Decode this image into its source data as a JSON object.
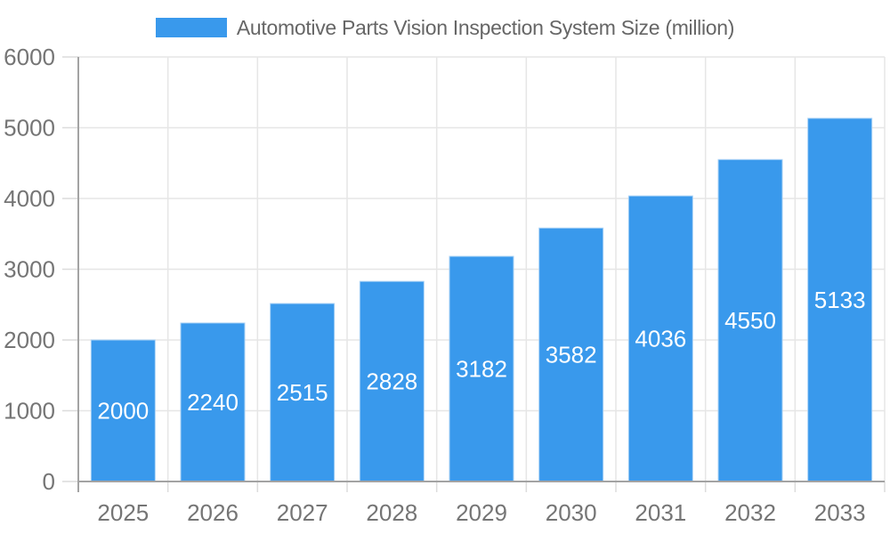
{
  "chart_data": {
    "type": "bar",
    "title": "Automotive Parts Vision Inspection System Size (million)",
    "categories": [
      "2025",
      "2026",
      "2027",
      "2028",
      "2029",
      "2030",
      "2031",
      "2032",
      "2033"
    ],
    "values": [
      2000,
      2240,
      2515,
      2828,
      3182,
      3582,
      4036,
      4550,
      5133
    ],
    "series_name": "Automotive Parts Vision Inspection System Size (million)",
    "xlabel": "",
    "ylabel": "",
    "ylim": [
      0,
      6000
    ],
    "y_ticks": [
      0,
      1000,
      2000,
      3000,
      4000,
      5000,
      6000
    ],
    "grid": "horizontal-and-vertical",
    "legend_position": "top-center",
    "value_label_style": "inside-center-white"
  },
  "colors": {
    "bar": "#3999EC",
    "bar_edge": "#A9D2F6",
    "grid": "#E6E6E6",
    "tick": "#DCDCDC",
    "axis": "#A3A3A3",
    "tick_label": "#757575",
    "legend_text": "#666666",
    "value_label": "#FFFFFF",
    "background": "#FFFFFF"
  }
}
